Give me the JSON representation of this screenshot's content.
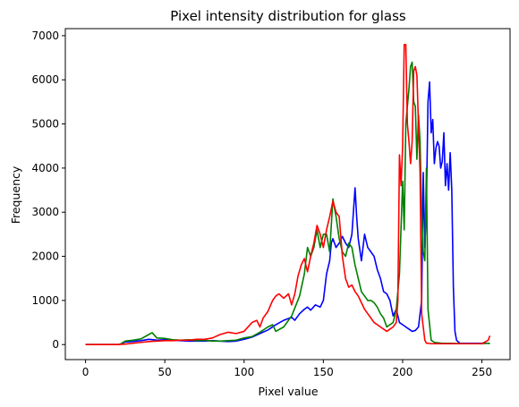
{
  "chart_data": {
    "type": "line",
    "title": "Pixel intensity distribution for glass",
    "xlabel": "Pixel value",
    "ylabel": "Frequency",
    "xlim": [
      -12.75,
      267.75
    ],
    "ylim": [
      -340,
      7160
    ],
    "xticks": [
      0,
      50,
      100,
      150,
      200,
      250
    ],
    "yticks": [
      0,
      1000,
      2000,
      3000,
      4000,
      5000,
      6000,
      7000
    ],
    "grid": false,
    "legend": "none",
    "series": [
      {
        "color": "#0000ff",
        "x": [
          0,
          10,
          20,
          22,
          25,
          30,
          35,
          40,
          45,
          50,
          55,
          60,
          65,
          70,
          75,
          80,
          85,
          90,
          95,
          100,
          105,
          110,
          115,
          120,
          125,
          130,
          132,
          135,
          138,
          140,
          142,
          145,
          148,
          150,
          152,
          154,
          155,
          156,
          158,
          160,
          162,
          164,
          166,
          168,
          170,
          171,
          172,
          174,
          176,
          178,
          180,
          182,
          184,
          186,
          188,
          190,
          192,
          194,
          196,
          198,
          200,
          202,
          204,
          206,
          208,
          210,
          212,
          213,
          214,
          215,
          216,
          217,
          218,
          219,
          220,
          221,
          222,
          223,
          224,
          225,
          226,
          227,
          228,
          229,
          230,
          231,
          232,
          233,
          234,
          236,
          240,
          245,
          250,
          254,
          255
        ],
        "y": [
          0,
          0,
          0,
          10,
          60,
          70,
          90,
          120,
          100,
          110,
          100,
          90,
          80,
          80,
          80,
          90,
          80,
          70,
          80,
          120,
          170,
          250,
          330,
          450,
          550,
          620,
          550,
          700,
          800,
          850,
          780,
          900,
          850,
          1000,
          1600,
          1900,
          2300,
          2400,
          2200,
          2300,
          2450,
          2300,
          2200,
          2500,
          3550,
          2900,
          2400,
          1900,
          2500,
          2200,
          2100,
          2000,
          1700,
          1500,
          1200,
          1150,
          1000,
          650,
          800,
          500,
          450,
          400,
          350,
          300,
          320,
          400,
          1000,
          3900,
          2200,
          3200,
          5500,
          5950,
          4800,
          5100,
          4100,
          4450,
          4600,
          4500,
          4000,
          4150,
          4800,
          3600,
          4100,
          3500,
          4350,
          3500,
          1300,
          300,
          100,
          30,
          30,
          30,
          30,
          30,
          30
        ]
      },
      {
        "color": "#008000",
        "x": [
          0,
          10,
          20,
          22,
          25,
          30,
          35,
          40,
          42,
          45,
          50,
          55,
          60,
          65,
          70,
          75,
          80,
          85,
          90,
          95,
          100,
          105,
          110,
          115,
          118,
          120,
          125,
          130,
          135,
          138,
          140,
          142,
          144,
          146,
          148,
          150,
          152,
          154,
          156,
          158,
          160,
          162,
          164,
          166,
          168,
          170,
          172,
          174,
          176,
          178,
          180,
          182,
          184,
          186,
          188,
          190,
          192,
          194,
          196,
          198,
          200,
          201,
          202,
          204,
          205,
          206,
          207,
          208,
          209,
          210,
          211,
          212,
          213,
          214,
          215,
          216,
          218,
          220,
          225,
          230,
          240,
          250,
          254,
          255
        ],
        "y": [
          0,
          0,
          0,
          10,
          80,
          100,
          130,
          230,
          270,
          150,
          140,
          110,
          100,
          110,
          90,
          100,
          80,
          80,
          90,
          100,
          150,
          180,
          280,
          400,
          450,
          300,
          400,
          650,
          1100,
          1600,
          2200,
          2000,
          2200,
          2600,
          2200,
          2500,
          2500,
          2100,
          3300,
          2900,
          2400,
          2100,
          2000,
          2300,
          2200,
          1800,
          1500,
          1200,
          1100,
          1000,
          1000,
          950,
          850,
          700,
          600,
          400,
          450,
          500,
          800,
          1600,
          3700,
          2600,
          5000,
          5800,
          6300,
          6400,
          5500,
          5400,
          4200,
          5200,
          4600,
          3000,
          2100,
          1900,
          4000,
          800,
          100,
          50,
          30,
          30,
          20,
          20,
          30,
          20
        ]
      },
      {
        "color": "#ff0000",
        "x": [
          0,
          10,
          20,
          25,
          30,
          35,
          40,
          45,
          50,
          55,
          60,
          65,
          70,
          75,
          80,
          85,
          90,
          95,
          100,
          105,
          108,
          110,
          112,
          115,
          118,
          120,
          122,
          125,
          128,
          130,
          132,
          134,
          136,
          138,
          140,
          142,
          144,
          146,
          148,
          150,
          152,
          154,
          156,
          158,
          160,
          162,
          164,
          166,
          168,
          170,
          172,
          174,
          176,
          178,
          180,
          182,
          184,
          186,
          188,
          190,
          192,
          194,
          196,
          197,
          198,
          199,
          200,
          201,
          202,
          203,
          204,
          205,
          206,
          207,
          208,
          209,
          210,
          211,
          212,
          213,
          214,
          215,
          216,
          218,
          220,
          225,
          230,
          240,
          250,
          254,
          255
        ],
        "y": [
          0,
          0,
          0,
          10,
          30,
          50,
          70,
          80,
          90,
          90,
          100,
          100,
          120,
          120,
          150,
          230,
          280,
          250,
          300,
          500,
          550,
          400,
          600,
          750,
          1000,
          1100,
          1150,
          1050,
          1150,
          900,
          1150,
          1550,
          1800,
          1950,
          1650,
          2000,
          2300,
          2700,
          2500,
          2200,
          2600,
          2900,
          3250,
          3000,
          2900,
          2000,
          1500,
          1300,
          1350,
          1200,
          1100,
          950,
          800,
          700,
          600,
          500,
          450,
          400,
          350,
          300,
          350,
          400,
          500,
          1000,
          4300,
          3600,
          4500,
          6800,
          6800,
          5000,
          4600,
          4100,
          4600,
          6200,
          6300,
          6100,
          5000,
          3900,
          700,
          400,
          100,
          30,
          30,
          20,
          20,
          20,
          20,
          20,
          20,
          100,
          200
        ]
      }
    ]
  }
}
